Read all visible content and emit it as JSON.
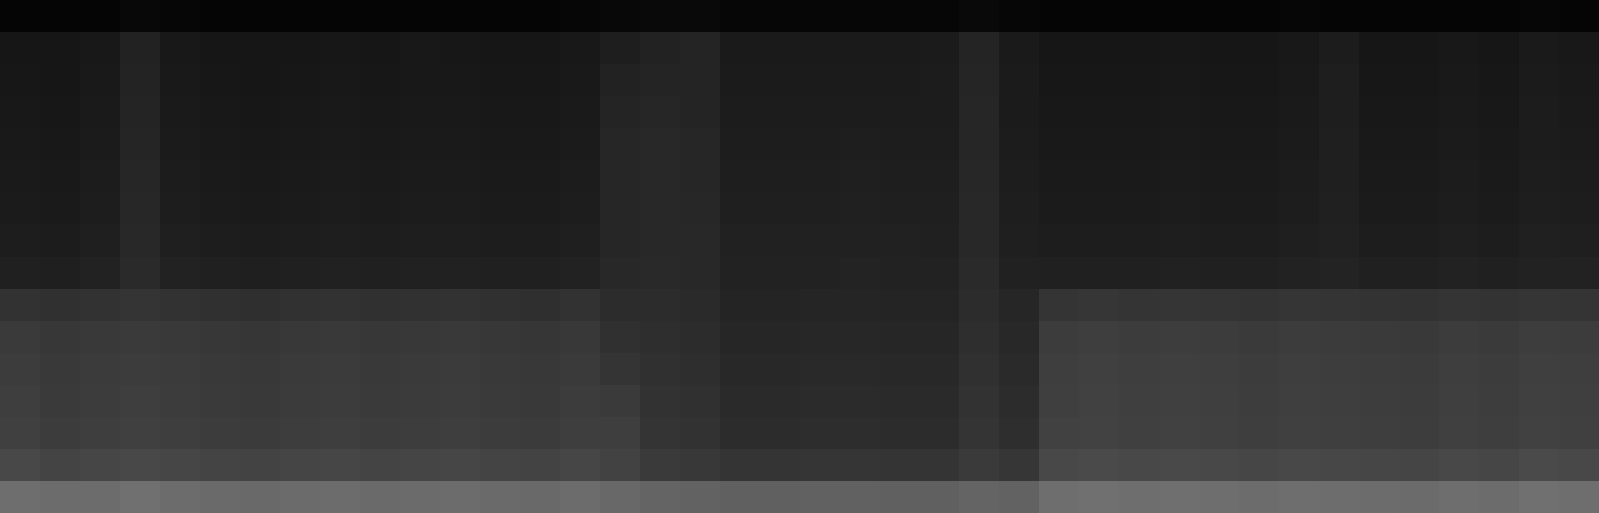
{
  "chart_data": {
    "type": "heatmap",
    "tick_labels": false,
    "zlim": [
      0,
      255
    ],
    "cells": [
      [
        5,
        5,
        5,
        8,
        6,
        5,
        5,
        5,
        5,
        5,
        5,
        5,
        5,
        5,
        6,
        8,
        9,
        9,
        6,
        6,
        6,
        6,
        6,
        6,
        9,
        6,
        5,
        5,
        5,
        5,
        5,
        5,
        6,
        5,
        5,
        5,
        5,
        5,
        6,
        5
      ],
      [
        22,
        22,
        24,
        34,
        24,
        22,
        22,
        22,
        23,
        22,
        24,
        23,
        22,
        22,
        24,
        30,
        34,
        36,
        26,
        26,
        26,
        26,
        26,
        27,
        36,
        26,
        22,
        22,
        22,
        23,
        22,
        22,
        24,
        28,
        22,
        22,
        24,
        22,
        26,
        24
      ],
      [
        23,
        22,
        25,
        35,
        25,
        23,
        22,
        23,
        24,
        23,
        24,
        24,
        23,
        23,
        25,
        34,
        36,
        36,
        27,
        27,
        27,
        27,
        27,
        28,
        37,
        27,
        23,
        23,
        23,
        24,
        23,
        23,
        25,
        30,
        23,
        23,
        25,
        23,
        27,
        25
      ],
      [
        24,
        23,
        26,
        36,
        26,
        24,
        23,
        24,
        25,
        24,
        25,
        25,
        24,
        24,
        26,
        36,
        38,
        36,
        28,
        28,
        28,
        28,
        28,
        28,
        38,
        27,
        24,
        24,
        24,
        25,
        24,
        24,
        26,
        30,
        24,
        24,
        26,
        24,
        28,
        26
      ],
      [
        25,
        24,
        27,
        37,
        27,
        25,
        24,
        25,
        26,
        25,
        26,
        26,
        25,
        25,
        27,
        38,
        40,
        38,
        29,
        29,
        29,
        30,
        29,
        29,
        38,
        28,
        25,
        25,
        25,
        26,
        25,
        25,
        27,
        31,
        25,
        25,
        27,
        25,
        28,
        27
      ],
      [
        26,
        25,
        28,
        38,
        28,
        26,
        25,
        26,
        27,
        26,
        27,
        27,
        26,
        26,
        28,
        38,
        40,
        38,
        30,
        30,
        30,
        31,
        30,
        30,
        39,
        29,
        26,
        26,
        26,
        27,
        26,
        26,
        28,
        31,
        26,
        26,
        28,
        26,
        29,
        28
      ],
      [
        27,
        26,
        29,
        39,
        29,
        27,
        26,
        27,
        28,
        27,
        28,
        28,
        27,
        27,
        29,
        38,
        40,
        39,
        31,
        31,
        31,
        32,
        31,
        31,
        40,
        30,
        27,
        27,
        27,
        28,
        27,
        27,
        29,
        32,
        27,
        27,
        29,
        27,
        30,
        29
      ],
      [
        29,
        28,
        31,
        40,
        31,
        29,
        28,
        29,
        30,
        29,
        30,
        30,
        29,
        29,
        31,
        38,
        40,
        40,
        33,
        33,
        33,
        33,
        33,
        32,
        40,
        31,
        29,
        29,
        29,
        30,
        29,
        29,
        31,
        33,
        29,
        29,
        31,
        29,
        32,
        31
      ],
      [
        32,
        31,
        34,
        42,
        34,
        32,
        31,
        32,
        33,
        32,
        33,
        33,
        32,
        32,
        34,
        40,
        41,
        40,
        34,
        34,
        34,
        35,
        34,
        34,
        42,
        33,
        32,
        32,
        32,
        33,
        32,
        32,
        34,
        35,
        32,
        32,
        34,
        32,
        34,
        34
      ],
      [
        50,
        48,
        50,
        52,
        50,
        48,
        47,
        49,
        50,
        48,
        49,
        50,
        48,
        47,
        50,
        44,
        44,
        42,
        36,
        36,
        37,
        37,
        36,
        36,
        44,
        38,
        52,
        54,
        52,
        53,
        52,
        51,
        53,
        52,
        51,
        50,
        52,
        51,
        53,
        52
      ],
      [
        58,
        55,
        57,
        58,
        57,
        55,
        54,
        56,
        57,
        55,
        56,
        57,
        55,
        54,
        56,
        48,
        46,
        44,
        38,
        38,
        39,
        39,
        38,
        38,
        46,
        40,
        60,
        62,
        60,
        61,
        60,
        58,
        60,
        59,
        58,
        57,
        60,
        58,
        61,
        60
      ],
      [
        60,
        57,
        59,
        60,
        59,
        57,
        56,
        58,
        59,
        57,
        58,
        59,
        57,
        56,
        58,
        52,
        48,
        46,
        40,
        40,
        41,
        41,
        40,
        40,
        48,
        42,
        62,
        64,
        62,
        63,
        62,
        60,
        62,
        61,
        60,
        59,
        62,
        60,
        63,
        62
      ],
      [
        62,
        58,
        60,
        62,
        60,
        58,
        57,
        59,
        60,
        58,
        59,
        60,
        58,
        57,
        60,
        58,
        50,
        48,
        42,
        42,
        43,
        43,
        42,
        42,
        50,
        44,
        63,
        65,
        63,
        64,
        63,
        61,
        63,
        62,
        61,
        60,
        63,
        61,
        64,
        63
      ],
      [
        64,
        60,
        62,
        64,
        62,
        60,
        59,
        61,
        62,
        60,
        61,
        62,
        60,
        59,
        62,
        62,
        52,
        50,
        44,
        44,
        45,
        45,
        44,
        44,
        52,
        46,
        65,
        66,
        64,
        65,
        64,
        62,
        64,
        63,
        62,
        61,
        64,
        62,
        65,
        64
      ],
      [
        72,
        68,
        70,
        72,
        70,
        68,
        67,
        69,
        70,
        68,
        69,
        70,
        68,
        67,
        70,
        66,
        58,
        56,
        52,
        52,
        53,
        53,
        52,
        52,
        58,
        54,
        72,
        74,
        72,
        73,
        72,
        70,
        72,
        71,
        70,
        69,
        72,
        70,
        74,
        72
      ],
      [
        110,
        108,
        108,
        112,
        108,
        106,
        105,
        107,
        108,
        106,
        107,
        108,
        106,
        105,
        108,
        104,
        100,
        98,
        96,
        96,
        97,
        97,
        96,
        96,
        100,
        98,
        110,
        112,
        110,
        111,
        110,
        108,
        110,
        109,
        108,
        107,
        110,
        108,
        112,
        110
      ]
    ]
  }
}
